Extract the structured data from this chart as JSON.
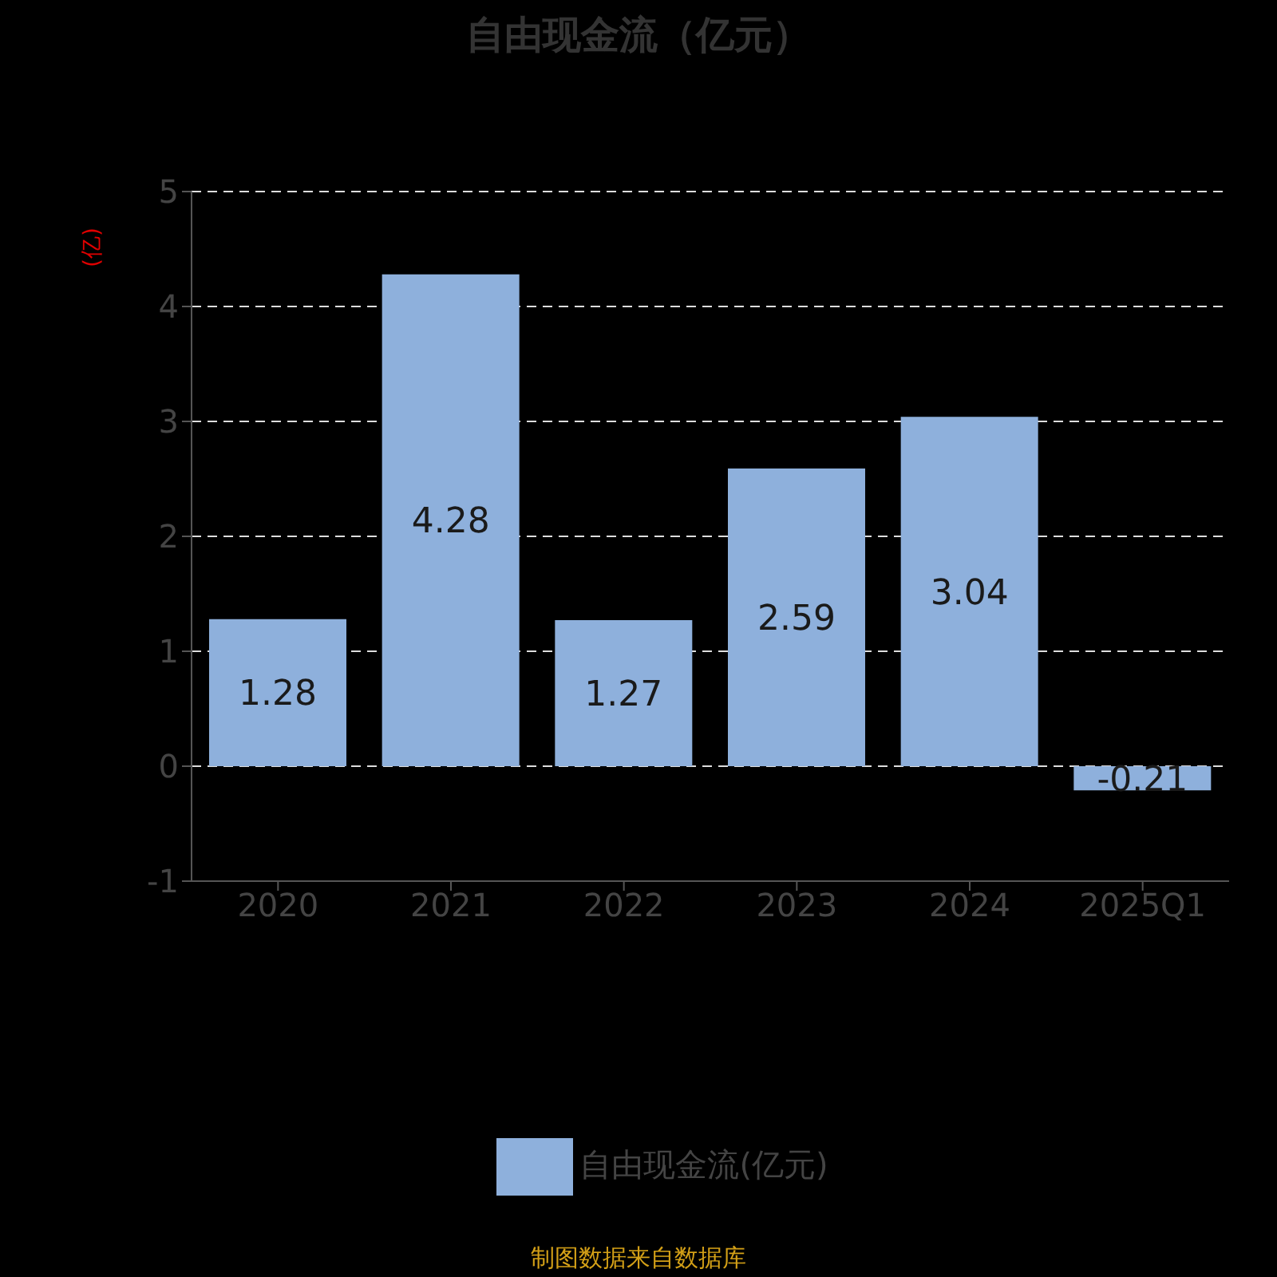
{
  "chart_data": {
    "type": "bar",
    "title": "自由现金流（亿元）",
    "ylabel": "(亿)",
    "categories": [
      "2020",
      "2021",
      "2022",
      "2023",
      "2024",
      "2025Q1"
    ],
    "series": [
      {
        "name": "自由现金流(亿元)",
        "color": "#8eb0dc",
        "values": [
          1.28,
          4.28,
          1.27,
          2.59,
          3.04,
          -0.21
        ]
      }
    ],
    "ylim": [
      -1,
      5
    ],
    "yticks": [
      -1,
      0,
      1,
      2,
      3,
      4,
      5
    ],
    "grid": "y",
    "legend": "bottom",
    "data_labels": true,
    "annotations": [
      "制图数据来自数据库"
    ]
  }
}
